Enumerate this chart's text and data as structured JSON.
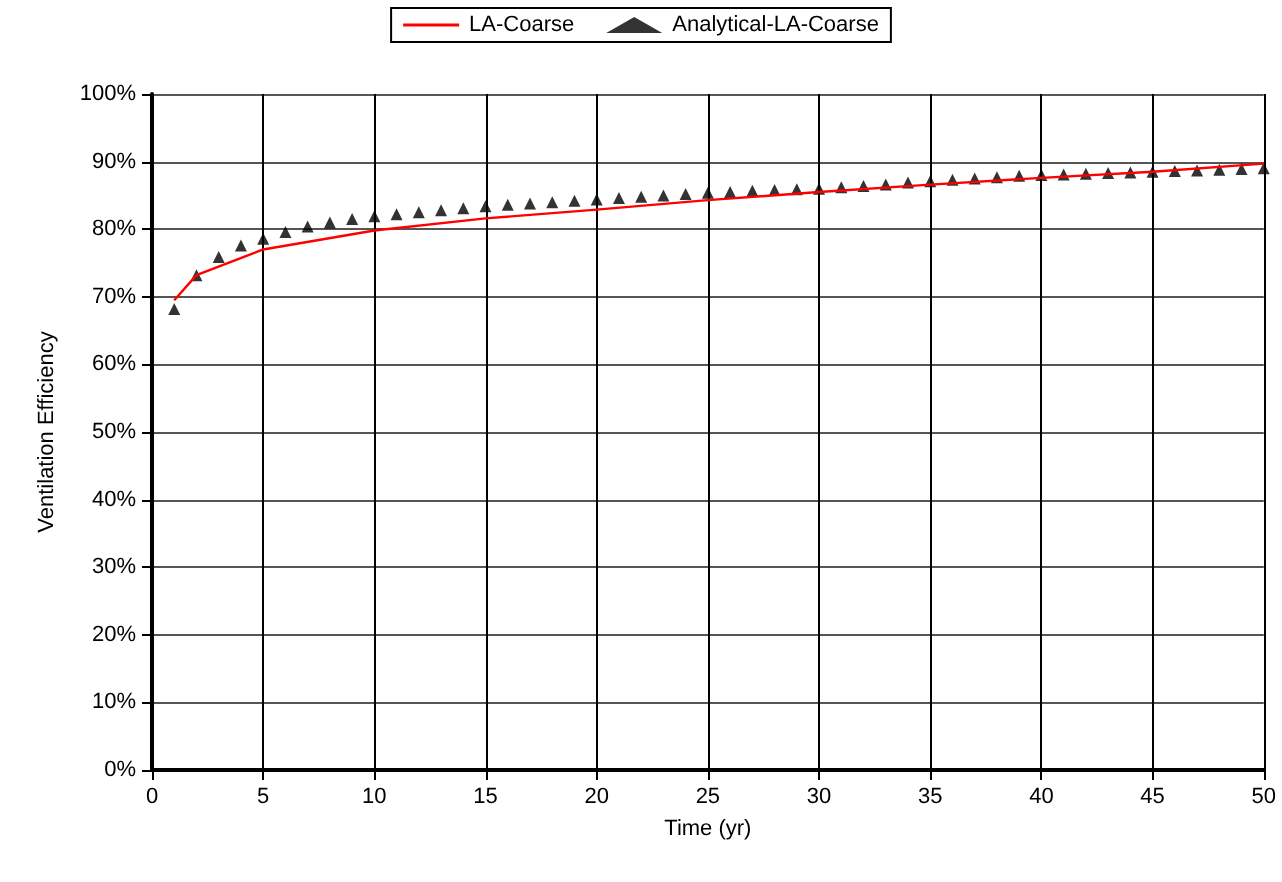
{
  "chart_data": {
    "type": "line",
    "xlabel": "Time (yr)",
    "ylabel": "Ventilation Efficiency",
    "xlim": [
      0,
      50
    ],
    "xticks": [
      0,
      5,
      10,
      15,
      20,
      25,
      30,
      35,
      40,
      45,
      50
    ],
    "ylim": [
      0,
      100
    ],
    "yticks": [
      {
        "value": 0,
        "label": "0%"
      },
      {
        "value": 10,
        "label": "10%"
      },
      {
        "value": 20,
        "label": "20%"
      },
      {
        "value": 30,
        "label": "30%"
      },
      {
        "value": 40,
        "label": "40%"
      },
      {
        "value": 50,
        "label": "50%"
      },
      {
        "value": 60,
        "label": "60%"
      },
      {
        "value": 70,
        "label": "70%"
      },
      {
        "value": 80,
        "label": "80%"
      },
      {
        "value": 90,
        "label": "90%"
      },
      {
        "value": 100,
        "label": "100%"
      }
    ],
    "grid": true,
    "legend": "top",
    "series": [
      {
        "name": "LA-Coarse",
        "color": "#ff0000",
        "marker": "none",
        "x": [
          1,
          2,
          5,
          10,
          15,
          20,
          25,
          30,
          35,
          40,
          45,
          50
        ],
        "values": [
          69.5,
          73.2,
          77.0,
          79.8,
          81.6,
          82.9,
          84.3,
          85.5,
          86.6,
          87.6,
          88.5,
          89.7
        ]
      },
      {
        "name": "Analytical-LA-Coarse",
        "type": "scatter",
        "color": "#000000",
        "marker": "triangle",
        "x": [
          1,
          2,
          3,
          4,
          5,
          6,
          7,
          8,
          9,
          10,
          11,
          12,
          13,
          14,
          15,
          16,
          17,
          18,
          19,
          20,
          21,
          22,
          23,
          24,
          25,
          26,
          27,
          28,
          29,
          30,
          31,
          32,
          33,
          34,
          35,
          36,
          37,
          38,
          39,
          40,
          41,
          42,
          43,
          44,
          45,
          46,
          47,
          48,
          49,
          50
        ],
        "values": [
          68.2,
          73.2,
          75.9,
          77.6,
          78.6,
          79.6,
          80.4,
          81.0,
          81.5,
          81.9,
          82.2,
          82.5,
          82.8,
          83.1,
          83.4,
          83.6,
          83.8,
          84.0,
          84.2,
          84.4,
          84.6,
          84.8,
          85.0,
          85.2,
          85.4,
          85.5,
          85.7,
          85.8,
          85.9,
          86.0,
          86.2,
          86.4,
          86.6,
          86.9,
          87.1,
          87.3,
          87.5,
          87.7,
          87.9,
          88.0,
          88.1,
          88.2,
          88.3,
          88.4,
          88.5,
          88.6,
          88.7,
          88.8,
          88.9,
          89.0
        ]
      }
    ]
  }
}
